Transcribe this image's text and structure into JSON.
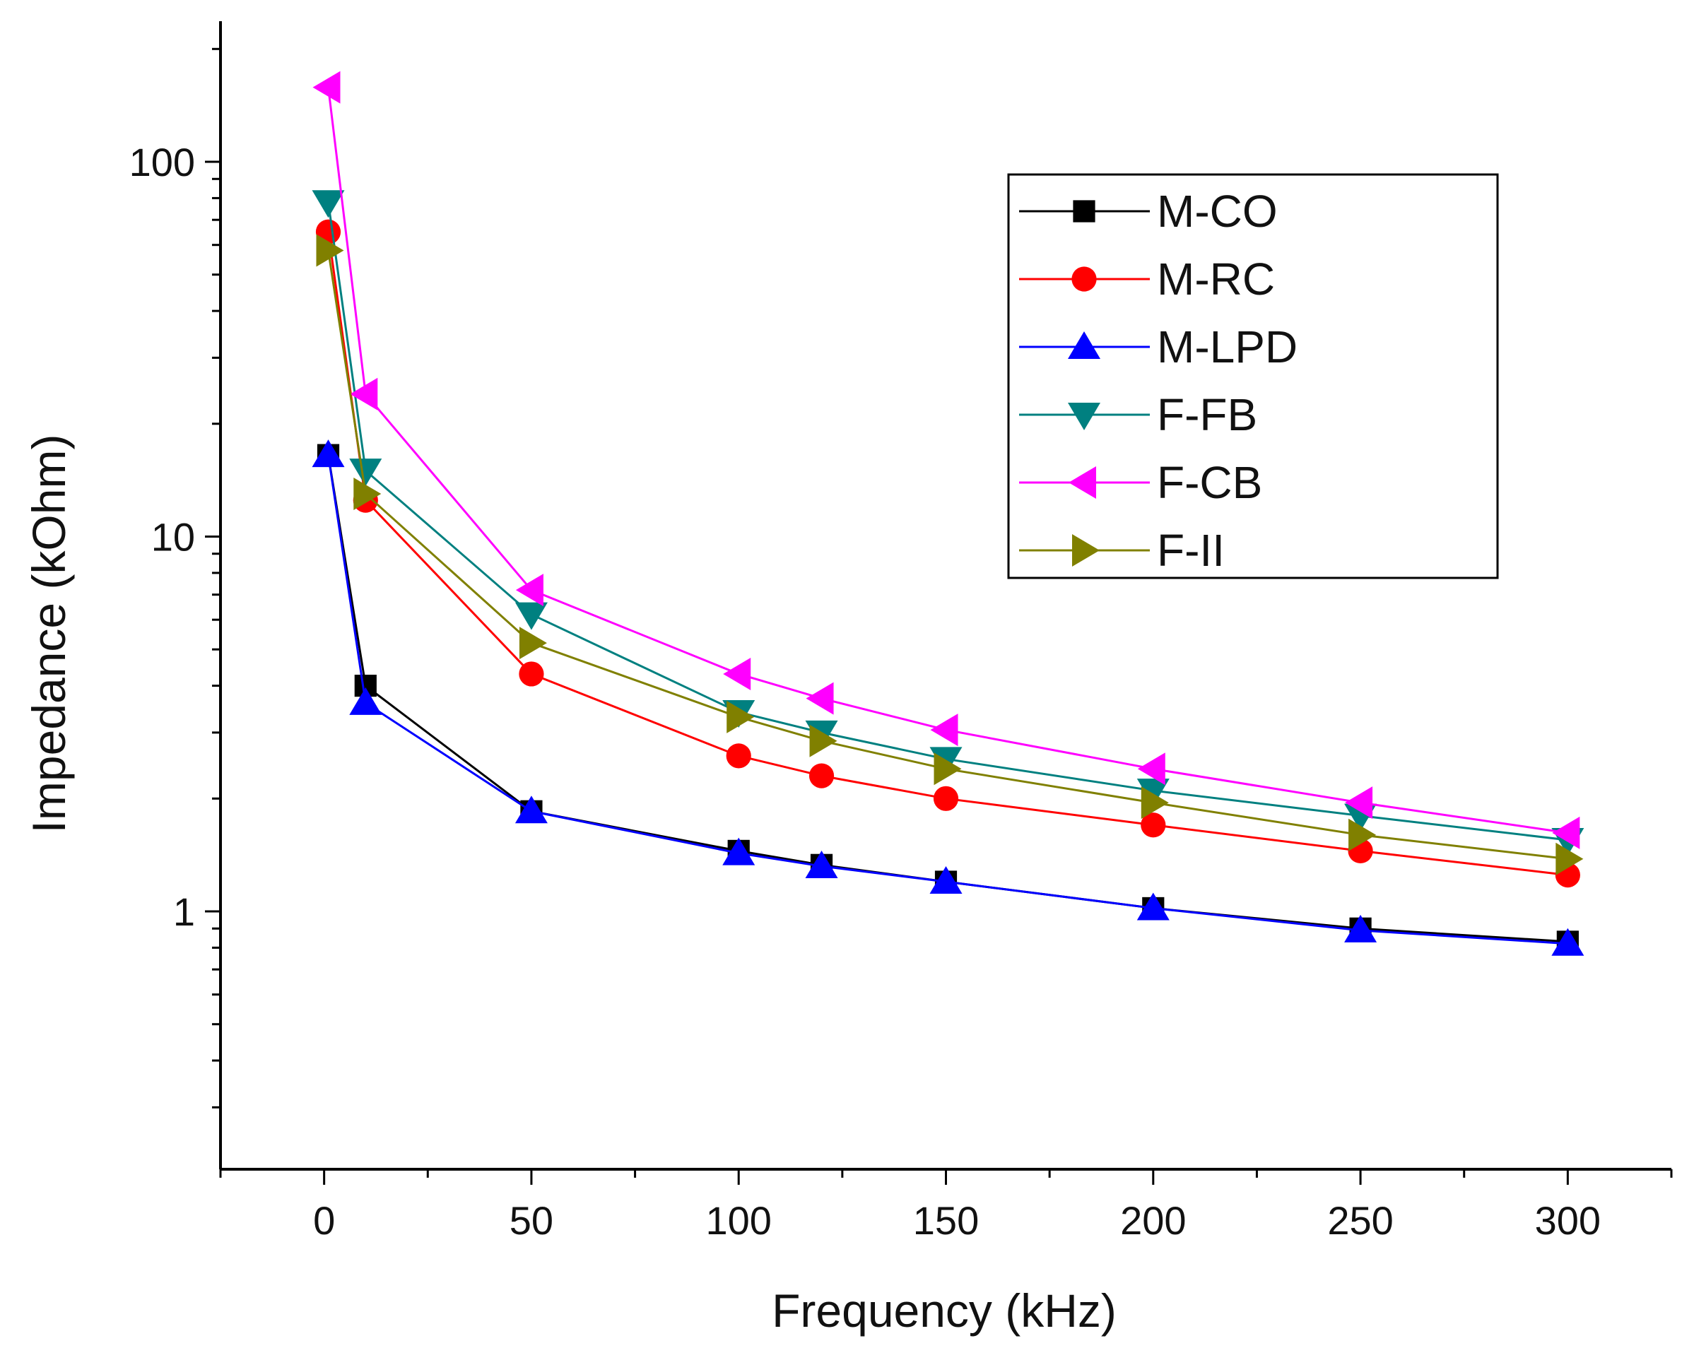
{
  "chart_data": {
    "type": "line",
    "title": "",
    "xlabel": "Frequency (kHz)",
    "ylabel": "Impedance (kOhm)",
    "y_scale": "log",
    "xlim": [
      -25,
      325
    ],
    "ylim": [
      0.2,
      230
    ],
    "x_ticks": [
      0,
      50,
      100,
      150,
      200,
      250,
      300
    ],
    "x_tick_labels": [
      "0",
      "50",
      "100",
      "150",
      "200",
      "250",
      "300"
    ],
    "y_ticks": [
      1,
      10,
      100
    ],
    "y_tick_labels": [
      "1",
      "10",
      "100"
    ],
    "grid": false,
    "legend_position": "top-right",
    "series": [
      {
        "name": "M-CO",
        "color": "#000000",
        "marker": "square",
        "x": [
          1,
          10,
          50,
          100,
          120,
          150,
          200,
          250,
          300
        ],
        "y": [
          16.5,
          4.0,
          1.85,
          1.45,
          1.33,
          1.2,
          1.02,
          0.9,
          0.83
        ]
      },
      {
        "name": "M-RC",
        "color": "#ff0000",
        "marker": "circle",
        "x": [
          1,
          10,
          50,
          100,
          120,
          150,
          200,
          250,
          300
        ],
        "y": [
          65,
          12.5,
          4.3,
          2.6,
          2.3,
          2.0,
          1.7,
          1.45,
          1.25
        ]
      },
      {
        "name": "M-LPD",
        "color": "#0000ff",
        "marker": "triangle-up",
        "x": [
          1,
          10,
          50,
          100,
          120,
          150,
          200,
          250,
          300
        ],
        "y": [
          16.5,
          3.6,
          1.85,
          1.43,
          1.32,
          1.2,
          1.02,
          0.89,
          0.82
        ]
      },
      {
        "name": "F-FB",
        "color": "#008080",
        "marker": "triangle-down",
        "x": [
          1,
          10,
          50,
          100,
          120,
          150,
          200,
          250,
          300
        ],
        "y": [
          78,
          15,
          6.2,
          3.4,
          3.0,
          2.55,
          2.1,
          1.8,
          1.55
        ]
      },
      {
        "name": "F-CB",
        "color": "#ff00ff",
        "marker": "triangle-left",
        "x": [
          1,
          10,
          50,
          100,
          120,
          150,
          200,
          250,
          300
        ],
        "y": [
          158,
          24,
          7.2,
          4.3,
          3.7,
          3.05,
          2.4,
          1.95,
          1.62
        ]
      },
      {
        "name": "F-II",
        "color": "#808000",
        "marker": "triangle-right",
        "x": [
          1,
          10,
          50,
          100,
          120,
          150,
          200,
          250,
          300
        ],
        "y": [
          58,
          13,
          5.2,
          3.3,
          2.85,
          2.4,
          1.95,
          1.6,
          1.38
        ]
      }
    ]
  }
}
